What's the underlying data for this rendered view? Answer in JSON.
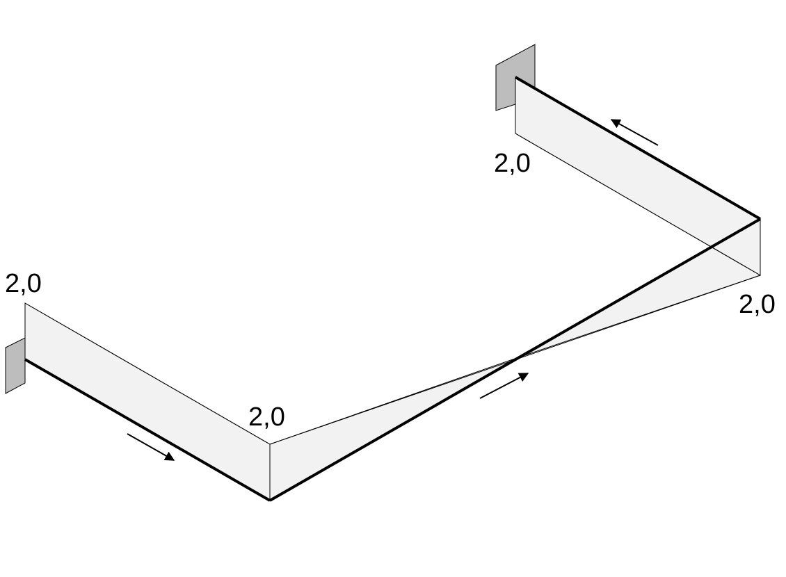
{
  "diagram": {
    "colors": {
      "background": "#ffffff",
      "panel_fill": "#f2f2f2",
      "support_fill": "#bdbdbd",
      "stroke": "#000000"
    },
    "labels": {
      "top_left_end": "2,0",
      "top_right_end": "2,0",
      "right_corner": "2,0",
      "bottom_corner": "2,0"
    }
  }
}
